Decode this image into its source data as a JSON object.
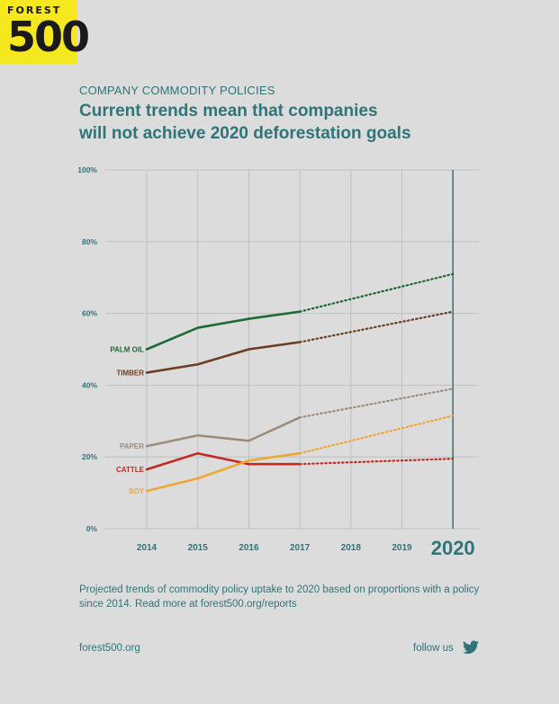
{
  "logo": {
    "top_text": "FOREST",
    "number_text": "500"
  },
  "kicker": "COMPANY COMMODITY POLICIES",
  "title_line1": "Current trends mean that companies",
  "title_line2": "will not achieve 2020 deforestation goals",
  "chart_data": {
    "type": "line",
    "categories": [
      "2014",
      "2015",
      "2016",
      "2017",
      "2018",
      "2019",
      "2020"
    ],
    "y_ticks": [
      "0%",
      "20%",
      "40%",
      "60%",
      "80%",
      "100%"
    ],
    "ylim": [
      0,
      100
    ],
    "highlight_category": "2020",
    "grid": true,
    "solid_through": "2017",
    "projected_after": "2017",
    "series": [
      {
        "name": "PALM OIL",
        "color": "#1f6a34",
        "values": [
          50,
          56,
          58.5,
          60.5,
          null,
          null,
          71
        ]
      },
      {
        "name": "TIMBER",
        "color": "#6b3e22",
        "values": [
          43.5,
          45.8,
          50,
          52,
          null,
          null,
          60.5
        ]
      },
      {
        "name": "PAPER",
        "color": "#9c8c7a",
        "values": [
          23,
          26,
          24.5,
          31,
          null,
          null,
          39
        ]
      },
      {
        "name": "CATTLE",
        "color": "#c42a22",
        "values": [
          16.5,
          21,
          18,
          18,
          null,
          null,
          19.5
        ]
      },
      {
        "name": "SOY",
        "color": "#f0a632",
        "values": [
          10.5,
          14,
          19,
          21,
          null,
          null,
          31.5
        ]
      }
    ]
  },
  "footnote": "Projected trends of commodity policy uptake to 2020 based on proportions with a policy since 2014. Read more at forest500.org/reports",
  "footer": {
    "site": "forest500.org",
    "follow": "follow us"
  },
  "icons": {
    "social": "twitter-bird-icon"
  }
}
